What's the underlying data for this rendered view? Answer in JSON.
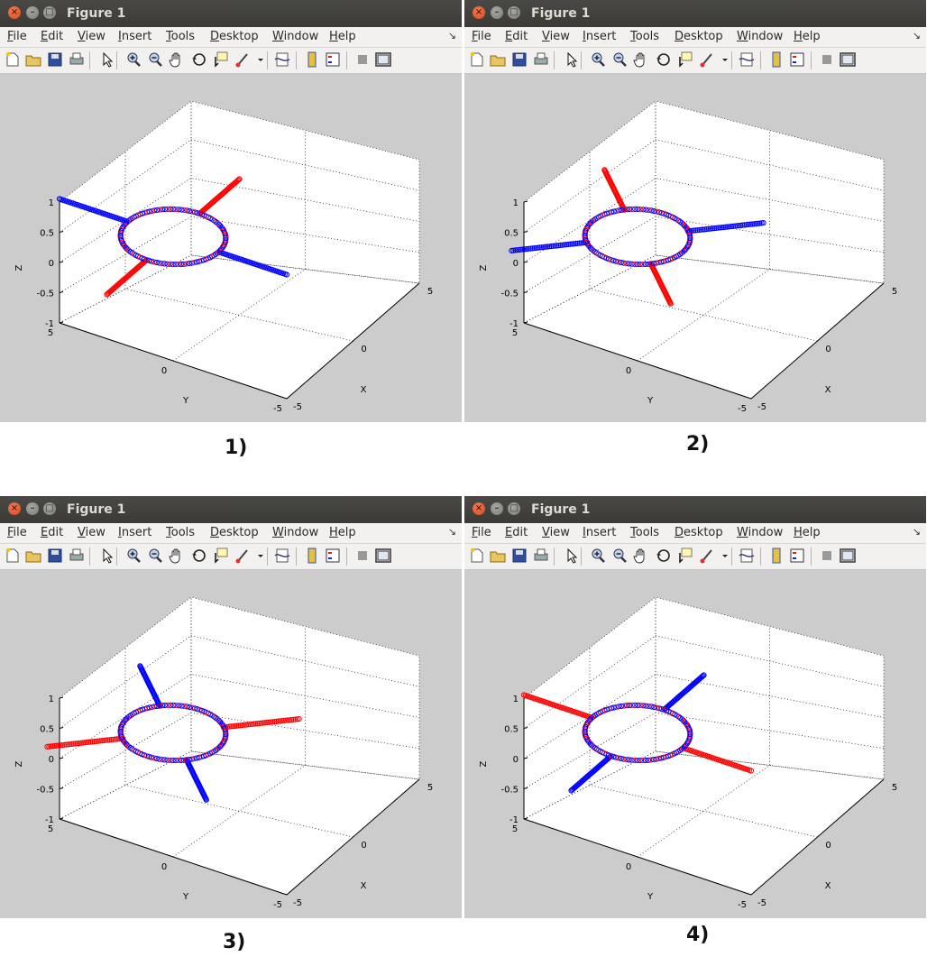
{
  "window": {
    "title": "Figure 1",
    "menu": [
      "File",
      "Edit",
      "View",
      "Insert",
      "Tools",
      "Desktop",
      "Window",
      "Help"
    ],
    "toolbar_icons": [
      "new-figure-icon",
      "open-file-icon",
      "save-icon",
      "print-icon",
      "select-arrow-icon",
      "zoom-in-icon",
      "zoom-out-icon",
      "pan-hand-icon",
      "rotate-3d-icon",
      "data-cursor-icon",
      "brush-icon",
      "brush-menu-icon",
      "link-plot-icon",
      "colorbar-icon",
      "legend-icon",
      "hide-plot-tools-icon",
      "show-plot-tools-icon"
    ]
  },
  "panel_labels": [
    "1)",
    "2)",
    "3)",
    "4)"
  ],
  "colors": {
    "red_series": "#ff0000",
    "blue_series": "#0000ff",
    "figure_bg": "#cccccc"
  },
  "chart_data": [
    {
      "type": "scatter",
      "title": "",
      "xlabel": "X",
      "ylabel": "Y",
      "zlabel": "Z",
      "xticks": [
        "-5",
        "0",
        "5"
      ],
      "yticks": [
        "-5",
        "0",
        "5"
      ],
      "zticks": [
        "-1",
        "-0.5",
        "0",
        "0.5",
        "1"
      ],
      "xlim": [
        -5,
        5
      ],
      "ylim": [
        -5,
        5
      ],
      "zlim": [
        -1,
        1
      ],
      "grid": true,
      "ring": {
        "radius": 2,
        "z": 0.5,
        "colors": [
          "blue",
          "red"
        ]
      },
      "series": [
        {
          "color": "blue",
          "points": [
            [
              0,
              -5,
              0.5
            ],
            [
              0,
              -2,
              0.5
            ],
            [
              0,
              2,
              0.5
            ],
            [
              0,
              5,
              0.5
            ]
          ]
        },
        {
          "color": "red",
          "points": [
            [
              -5,
              0,
              0.5
            ],
            [
              -2,
              0,
              0.5
            ],
            [
              2,
              0,
              0.5
            ],
            [
              5,
              0,
              0.5
            ]
          ]
        }
      ]
    },
    {
      "type": "scatter",
      "title": "",
      "xlabel": "X",
      "ylabel": "Y",
      "zlabel": "Z",
      "xticks": [
        "-5",
        "0",
        "5"
      ],
      "yticks": [
        "-5",
        "0",
        "5"
      ],
      "zticks": [
        "-1",
        "-0.5",
        "0",
        "0.5",
        "1"
      ],
      "xlim": [
        -5,
        5
      ],
      "ylim": [
        -5,
        5
      ],
      "zlim": [
        -1,
        1
      ],
      "grid": true,
      "ring": {
        "radius": 2,
        "z": 0.5,
        "colors": [
          "blue",
          "red"
        ]
      },
      "series": [
        {
          "color": "blue",
          "points": [
            [
              3.5,
              -3.5,
              0.5
            ],
            [
              1.4,
              -1.4,
              0.5
            ],
            [
              -1.4,
              1.4,
              0.5
            ],
            [
              -3.5,
              3.5,
              0.5
            ]
          ]
        },
        {
          "color": "red",
          "points": [
            [
              -3.5,
              -3.5,
              0.5
            ],
            [
              -1.4,
              -1.4,
              0.5
            ],
            [
              1.4,
              1.4,
              0.5
            ],
            [
              3.5,
              3.5,
              0.5
            ]
          ]
        }
      ]
    },
    {
      "type": "scatter",
      "title": "",
      "xlabel": "X",
      "ylabel": "Y",
      "zlabel": "Z",
      "xticks": [
        "-5",
        "0",
        "5"
      ],
      "yticks": [
        "-5",
        "0",
        "5"
      ],
      "zticks": [
        "-1",
        "-0.5",
        "0",
        "0.5",
        "1"
      ],
      "xlim": [
        -5,
        5
      ],
      "ylim": [
        -5,
        5
      ],
      "zlim": [
        -1,
        1
      ],
      "grid": true,
      "ring": {
        "radius": 2,
        "z": 0.5,
        "colors": [
          "blue",
          "red"
        ]
      },
      "series": [
        {
          "color": "blue",
          "points": [
            [
              -3.5,
              -3.5,
              0.5
            ],
            [
              -1.4,
              -1.4,
              0.5
            ],
            [
              1.4,
              1.4,
              0.5
            ],
            [
              3.5,
              3.5,
              0.5
            ]
          ]
        },
        {
          "color": "red",
          "points": [
            [
              3.5,
              -3.5,
              0.5
            ],
            [
              1.4,
              -1.4,
              0.5
            ],
            [
              -1.4,
              1.4,
              0.5
            ],
            [
              -3.5,
              3.5,
              0.5
            ]
          ]
        }
      ]
    },
    {
      "type": "scatter",
      "title": "",
      "xlabel": "X",
      "ylabel": "Y",
      "zlabel": "Z",
      "xticks": [
        "-5",
        "0",
        "5"
      ],
      "yticks": [
        "-5",
        "0",
        "5"
      ],
      "zticks": [
        "-1",
        "-0.5",
        "0",
        "0.5",
        "1"
      ],
      "xlim": [
        -5,
        5
      ],
      "ylim": [
        -5,
        5
      ],
      "zlim": [
        -1,
        1
      ],
      "grid": true,
      "ring": {
        "radius": 2,
        "z": 0.5,
        "colors": [
          "blue",
          "red"
        ]
      },
      "series": [
        {
          "color": "red",
          "points": [
            [
              0,
              -5,
              0.5
            ],
            [
              0,
              -2,
              0.5
            ],
            [
              0,
              2,
              0.5
            ],
            [
              0,
              5,
              0.5
            ]
          ]
        },
        {
          "color": "blue",
          "points": [
            [
              -5,
              0,
              0.5
            ],
            [
              -2,
              0,
              0.5
            ],
            [
              2,
              0,
              0.5
            ],
            [
              5,
              0,
              0.5
            ]
          ]
        }
      ]
    }
  ]
}
